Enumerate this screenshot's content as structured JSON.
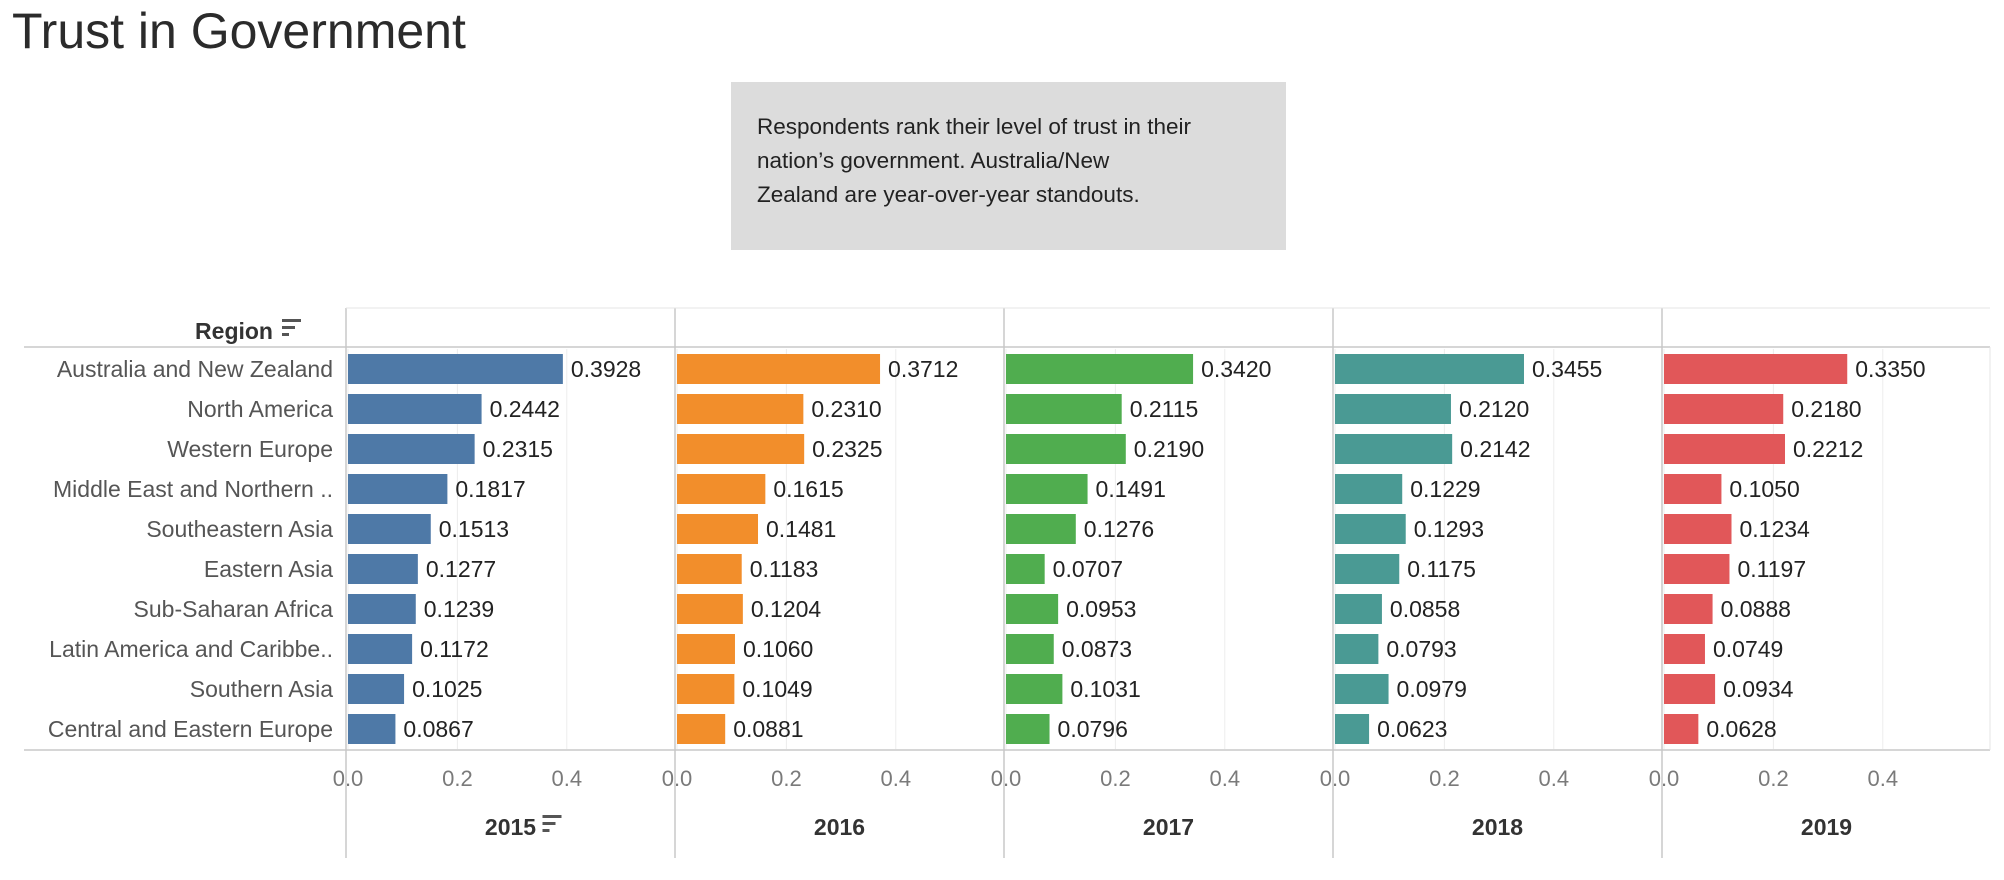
{
  "title": "Trust in Government",
  "annotation": {
    "lines": [
      "Respondents rank their level of trust in their",
      "nation’s government. Australia/New",
      "Zealand are year-over-year standouts."
    ]
  },
  "colors": {
    "2015": "#4e79a7",
    "2016": "#f28e2b",
    "2017": "#50ad4f",
    "2018": "#4a9a94",
    "2019": "#e15759",
    "grid": "#ececec",
    "rule": "#c8c8c8",
    "note_bg": "#dcdcdc"
  },
  "chart_data": {
    "type": "bar",
    "orientation": "horizontal",
    "row_header": "Region",
    "row_header_icon": "sort-icon",
    "sorted_column": "2015",
    "categories": [
      "Australia and New Zealand",
      "North America",
      "Western Europe",
      "Middle East and Northern ..",
      "Southeastern Asia",
      "Eastern Asia",
      "Sub-Saharan Africa",
      "Latin America and Caribbe..",
      "Southern Asia",
      "Central and Eastern Europe"
    ],
    "series": [
      {
        "name": "2015",
        "values": [
          0.3928,
          0.2442,
          0.2315,
          0.1817,
          0.1513,
          0.1277,
          0.1239,
          0.1172,
          0.1025,
          0.0867
        ],
        "labels": [
          "0.3928",
          "0.2442",
          "0.2315",
          "0.1817",
          "0.1513",
          "0.1277",
          "0.1239",
          "0.1172",
          "0.1025",
          "0.0867"
        ]
      },
      {
        "name": "2016",
        "values": [
          0.3712,
          0.231,
          0.2325,
          0.1615,
          0.1481,
          0.1183,
          0.1204,
          0.106,
          0.1049,
          0.0881
        ],
        "labels": [
          "0.3712",
          "0.2310",
          "0.2325",
          "0.1615",
          "0.1481",
          "0.1183",
          "0.1204",
          "0.1060",
          "0.1049",
          "0.0881"
        ]
      },
      {
        "name": "2017",
        "values": [
          0.342,
          0.2115,
          0.219,
          0.1491,
          0.1276,
          0.0707,
          0.0953,
          0.0873,
          0.1031,
          0.0796
        ],
        "labels": [
          "0.3420",
          "0.2115",
          "0.2190",
          "0.1491",
          "0.1276",
          "0.0707",
          "0.0953",
          "0.0873",
          "0.1031",
          "0.0796"
        ]
      },
      {
        "name": "2018",
        "values": [
          0.3455,
          0.212,
          0.2142,
          0.1229,
          0.1293,
          0.1175,
          0.0858,
          0.0793,
          0.0979,
          0.0623
        ],
        "labels": [
          "0.3455",
          "0.2120",
          "0.2142",
          "0.1229",
          "0.1293",
          "0.1175",
          "0.0858",
          "0.0793",
          "0.0979",
          "0.0623"
        ]
      },
      {
        "name": "2019",
        "values": [
          0.335,
          0.218,
          0.2212,
          0.105,
          0.1234,
          0.1197,
          0.0888,
          0.0749,
          0.0934,
          0.0628
        ],
        "labels": [
          "0.3350",
          "0.2180",
          "0.2212",
          "0.1050",
          "0.1234",
          "0.1197",
          "0.0888",
          "0.0749",
          "0.0934",
          "0.0628"
        ]
      }
    ],
    "xlim": [
      0,
      0.5
    ],
    "x_ticks": [
      0,
      0.2,
      0.4
    ],
    "x_tick_labels": [
      "0.0",
      "0.2",
      "0.4"
    ],
    "grid": true
  }
}
